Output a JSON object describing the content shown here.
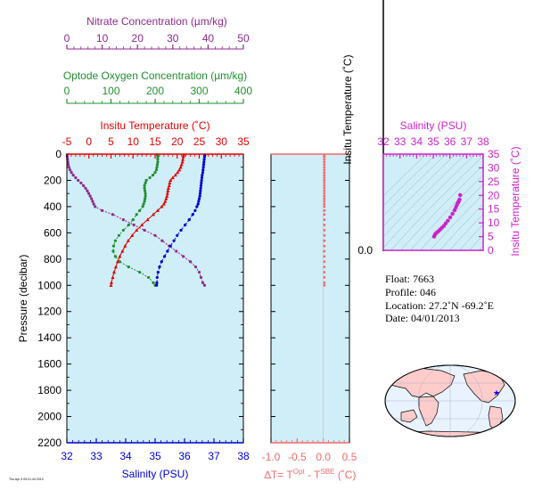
{
  "colors": {
    "nitrate": "#8e2a8e",
    "oxygen": "#1f8f2f",
    "temperature": "#e00000",
    "salinity": "#0000cc",
    "delta": "#f06a6a",
    "inset_salinity": "#cc22cc",
    "plot_bg": "#cfeef8"
  },
  "chart_data": [
    {
      "type": "line",
      "panel": "main-profile",
      "axes": {
        "nitrate": {
          "label": "Nitrate Concentration (µm/kg)",
          "ticks": [
            "0",
            "10",
            "20",
            "30",
            "40",
            "50"
          ],
          "range": [
            0,
            50
          ]
        },
        "oxygen": {
          "label": "Optode Oxygen Concentration (µm/kg)",
          "ticks": [
            "0",
            "100",
            "200",
            "300",
            "400"
          ],
          "range": [
            0,
            400
          ]
        },
        "temperature": {
          "label": "Insitu Temperature (˚C)",
          "ticks": [
            "-5",
            "0",
            "5",
            "10",
            "15",
            "20",
            "25",
            "30",
            "35"
          ],
          "range": [
            -5,
            35
          ]
        },
        "salinity": {
          "label": "Salinity (PSU)",
          "ticks": [
            "32",
            "33",
            "34",
            "35",
            "36",
            "37",
            "38"
          ],
          "range": [
            32,
            38
          ]
        },
        "pressure": {
          "label": "Pressure (decibar)",
          "ticks": [
            "0",
            "200",
            "400",
            "600",
            "800",
            "1000",
            "1200",
            "1400",
            "1600",
            "1800",
            "2000",
            "2200"
          ],
          "range": [
            0,
            2200
          ]
        }
      },
      "series": [
        {
          "key": "nitrate",
          "pressure": [
            5,
            20,
            40,
            60,
            80,
            100,
            120,
            140,
            160,
            180,
            200,
            220,
            240,
            260,
            280,
            300,
            320,
            340,
            360,
            380,
            400,
            430,
            460,
            500,
            540,
            580,
            620,
            660,
            700,
            740,
            780,
            820,
            860,
            900,
            940,
            980,
            1000
          ],
          "values": [
            0.1,
            0.1,
            0.2,
            0.3,
            0.4,
            0.6,
            0.9,
            1.3,
            1.8,
            2.5,
            3.2,
            4.0,
            4.7,
            5.3,
            5.8,
            6.2,
            6.6,
            7.0,
            7.3,
            7.6,
            8.0,
            10,
            13,
            16,
            19,
            22,
            25,
            27,
            29,
            31,
            33,
            35,
            36.5,
            37.5,
            38,
            38.5,
            39
          ]
        },
        {
          "key": "oxygen",
          "pressure": [
            5,
            20,
            40,
            60,
            80,
            100,
            120,
            140,
            160,
            180,
            200,
            220,
            240,
            260,
            280,
            300,
            320,
            340,
            360,
            380,
            400,
            430,
            460,
            500,
            540,
            580,
            620,
            660,
            700,
            740,
            780,
            820,
            860,
            900,
            940,
            980,
            1000
          ],
          "values": [
            205,
            206,
            206,
            206,
            205,
            204,
            203,
            200,
            195,
            188,
            180,
            178,
            176,
            176,
            177,
            178,
            178,
            177,
            176,
            174,
            172,
            165,
            158,
            150,
            140,
            128,
            118,
            110,
            106,
            105,
            110,
            120,
            140,
            165,
            185,
            196,
            200
          ]
        },
        {
          "key": "temperature",
          "pressure": [
            5,
            20,
            40,
            60,
            80,
            100,
            120,
            140,
            160,
            180,
            200,
            220,
            240,
            260,
            280,
            300,
            320,
            340,
            360,
            380,
            400,
            430,
            460,
            500,
            540,
            580,
            620,
            660,
            700,
            740,
            780,
            820,
            860,
            900,
            940,
            980,
            1000
          ],
          "values": [
            21.5,
            21.4,
            21.3,
            21.2,
            21.0,
            20.8,
            20.5,
            20.1,
            19.6,
            19.0,
            18.5,
            18.3,
            18.2,
            18.0,
            17.9,
            17.8,
            17.7,
            17.5,
            17.3,
            17.0,
            16.5,
            15.6,
            14.6,
            13.3,
            12.0,
            10.8,
            9.8,
            8.9,
            8.2,
            7.6,
            7.0,
            6.5,
            6.1,
            5.7,
            5.4,
            5.1,
            5.0
          ]
        },
        {
          "key": "salinity",
          "pressure": [
            5,
            20,
            40,
            60,
            80,
            100,
            120,
            140,
            160,
            180,
            200,
            220,
            240,
            260,
            280,
            300,
            320,
            340,
            360,
            380,
            400,
            430,
            460,
            500,
            540,
            580,
            620,
            660,
            700,
            740,
            780,
            820,
            860,
            900,
            940,
            980,
            1000
          ],
          "values": [
            36.69,
            36.68,
            36.67,
            36.66,
            36.65,
            36.64,
            36.63,
            36.62,
            36.6,
            36.59,
            36.58,
            36.57,
            36.56,
            36.55,
            36.54,
            36.53,
            36.52,
            36.5,
            36.48,
            36.46,
            36.42,
            36.36,
            36.28,
            36.16,
            36.02,
            35.88,
            35.75,
            35.64,
            35.52,
            35.42,
            35.32,
            35.22,
            35.15,
            35.1,
            35.07,
            35.06,
            35.05
          ]
        }
      ]
    },
    {
      "type": "scatter",
      "panel": "delta-t",
      "axes": {
        "x": {
          "label_parts": [
            "∆T= T",
            "Opt",
            " - T",
            "SBE",
            " (˚C)"
          ],
          "ticks": [
            "-1.0",
            "-0.5",
            "0.0",
            "0.5"
          ],
          "range": [
            -1.0,
            0.5
          ]
        },
        "y": {
          "range": [
            0,
            2200
          ]
        }
      },
      "pressure": [
        5,
        20,
        40,
        60,
        80,
        100,
        120,
        140,
        160,
        180,
        200,
        220,
        240,
        260,
        280,
        300,
        320,
        340,
        360,
        380,
        400,
        430,
        460,
        500,
        540,
        580,
        620,
        660,
        700,
        740,
        780,
        820,
        860,
        900,
        940,
        980,
        1000
      ],
      "values": [
        0.02,
        0.02,
        0.02,
        0.02,
        0.02,
        0.02,
        0.02,
        0.02,
        0.02,
        0.02,
        0.02,
        0.02,
        0.02,
        0.02,
        0.02,
        0.02,
        0.02,
        0.02,
        0.02,
        0.02,
        0.02,
        0.02,
        0.02,
        0.02,
        0.02,
        0.02,
        0.02,
        0.02,
        0.02,
        0.02,
        0.02,
        0.02,
        0.02,
        0.02,
        0.02,
        0.02,
        0.02
      ]
    },
    {
      "type": "scatter",
      "panel": "ts-diagram",
      "axes": {
        "x": {
          "label": "Salinity (PSU)",
          "ticks": [
            "32",
            "33",
            "34",
            "35",
            "36",
            "37",
            "38"
          ],
          "range": [
            32,
            38
          ]
        },
        "y": {
          "label": "Insitu Temperature (˚C)",
          "ticks": [
            "0",
            "5",
            "10",
            "15",
            "20",
            "25",
            "30",
            "35"
          ],
          "range": [
            0,
            35
          ]
        }
      },
      "salinity": [
        35.05,
        35.1,
        35.15,
        35.22,
        35.32,
        35.42,
        35.52,
        35.64,
        35.75,
        35.88,
        36.02,
        36.16,
        36.28,
        36.36,
        36.42,
        36.48,
        36.52,
        36.55,
        36.58,
        36.62
      ],
      "temperature": [
        5.0,
        5.7,
        6.1,
        6.5,
        7.0,
        7.6,
        8.2,
        8.9,
        9.8,
        10.8,
        12.0,
        13.3,
        14.6,
        15.6,
        16.5,
        17.3,
        17.7,
        18.0,
        18.5,
        20.1
      ]
    },
    {
      "type": "line",
      "panel": "empty-strip",
      "axes": {
        "y": {
          "label": "Insitu Temperature (˚C)",
          "ticks": [
            "0.0"
          ]
        }
      }
    }
  ],
  "info": {
    "float": "Float:  7663",
    "profile": "Profile:  046",
    "location": "Location:  27.2˚N  -69.2˚E",
    "date": "Date:  04/01/2013"
  },
  "stamp": "Thu Apr 4 09:21:44 2013"
}
